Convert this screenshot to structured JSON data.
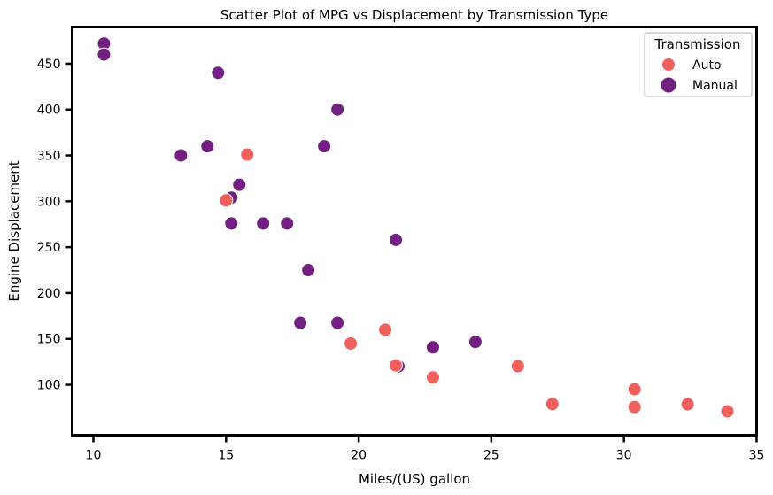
{
  "chart_data": {
    "type": "scatter",
    "title": "Scatter Plot of MPG vs Displacement by Transmission Type",
    "xlabel": "Miles/(US) gallon",
    "ylabel": "Engine Displacement",
    "xlim": [
      9.2,
      35.0
    ],
    "ylim": [
      45,
      490
    ],
    "xticks": [
      10,
      15,
      20,
      25,
      30,
      35
    ],
    "yticks": [
      100,
      150,
      200,
      250,
      300,
      350,
      400,
      450
    ],
    "grid": false,
    "legend": {
      "title": "Transmission",
      "placement": "top-right",
      "entries": [
        {
          "name": "Auto",
          "color": "#f0605d"
        },
        {
          "name": "Manual",
          "color": "#721f81"
        }
      ]
    },
    "series": [
      {
        "name": "Manual",
        "color": "#721f81",
        "points": [
          [
            10.4,
            472
          ],
          [
            10.4,
            460
          ],
          [
            14.7,
            440
          ],
          [
            19.2,
            400
          ],
          [
            13.3,
            350
          ],
          [
            14.3,
            360
          ],
          [
            18.7,
            360
          ],
          [
            15.5,
            318
          ],
          [
            15.2,
            304
          ],
          [
            15.2,
            275.8
          ],
          [
            16.4,
            275.8
          ],
          [
            17.3,
            275.8
          ],
          [
            21.4,
            258
          ],
          [
            18.1,
            225
          ],
          [
            17.8,
            167.6
          ],
          [
            19.2,
            167.6
          ],
          [
            22.8,
            140.8
          ],
          [
            24.4,
            146.7
          ],
          [
            21.5,
            120.1
          ]
        ]
      },
      {
        "name": "Auto",
        "color": "#f0605d",
        "points": [
          [
            15.8,
            351
          ],
          [
            15.0,
            301
          ],
          [
            21.0,
            160
          ],
          [
            19.7,
            145
          ],
          [
            21.4,
            121
          ],
          [
            22.8,
            108
          ],
          [
            26.0,
            120.3
          ],
          [
            27.3,
            79
          ],
          [
            30.4,
            95.1
          ],
          [
            30.4,
            75.7
          ],
          [
            32.4,
            78.7
          ],
          [
            33.9,
            71.1
          ]
        ]
      }
    ]
  }
}
